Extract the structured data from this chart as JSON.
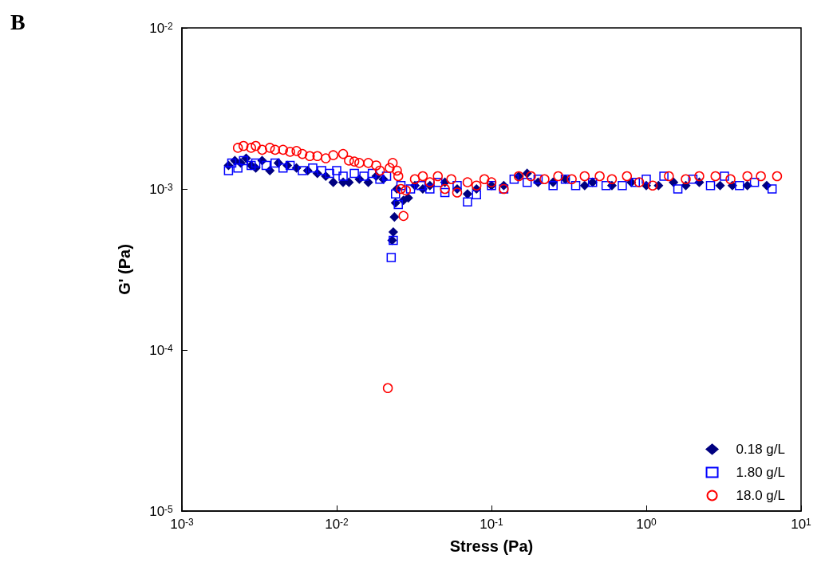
{
  "chart_data": {
    "type": "scatter",
    "title": "B",
    "xlabel": "Stress (Pa)",
    "ylabel": "G' (Pa)",
    "log": "xy",
    "grid": false,
    "legend": "bottom right",
    "xlim": [
      0.001,
      10
    ],
    "xticks": [
      {
        "value": 0.001,
        "label": "10$^{-3}$"
      },
      {
        "value": 0.01,
        "label": "10$^{-2}$"
      },
      {
        "value": 0.1,
        "label": "10$^{-1}$"
      },
      {
        "value": 1,
        "label": "10$^{0}$"
      },
      {
        "value": 10,
        "label": "10$^{1}$"
      }
    ],
    "ylim": [
      1e-05,
      0.01
    ],
    "yticks": [
      {
        "value": 1e-05,
        "label": "10$^{-5}$"
      },
      {
        "value": 0.0001,
        "label": "10$^{-4}$"
      },
      {
        "value": 0.001,
        "label": "10$^{-3}$"
      },
      {
        "value": 0.01,
        "label": "10$^{-2}$"
      }
    ],
    "series": [
      {
        "name": "0.18 g/L",
        "color": "#000080",
        "marker": "diamond",
        "x": [
          0.002,
          0.0022,
          0.0024,
          0.0026,
          0.0028,
          0.003,
          0.0033,
          0.0037,
          0.0042,
          0.0048,
          0.0055,
          0.0065,
          0.0075,
          0.0085,
          0.0095,
          0.011,
          0.012,
          0.014,
          0.016,
          0.018,
          0.02,
          0.0228,
          0.0232,
          0.0236,
          0.024,
          0.0245,
          0.027,
          0.029,
          0.032,
          0.036,
          0.04,
          0.05,
          0.06,
          0.07,
          0.08,
          0.1,
          0.12,
          0.15,
          0.17,
          0.2,
          0.25,
          0.3,
          0.4,
          0.45,
          0.6,
          0.8,
          1.0,
          1.2,
          1.5,
          1.8,
          2.2,
          3.0,
          3.6,
          4.5,
          6.0
        ],
        "values": [
          0.0014,
          0.0015,
          0.00145,
          0.00155,
          0.0014,
          0.00135,
          0.0015,
          0.0013,
          0.00145,
          0.0014,
          0.00135,
          0.0013,
          0.00125,
          0.0012,
          0.0011,
          0.0011,
          0.0011,
          0.00115,
          0.0011,
          0.0012,
          0.00115,
          0.00048,
          0.00054,
          0.00067,
          0.00082,
          0.001,
          0.00085,
          0.00088,
          0.00105,
          0.001,
          0.00105,
          0.0011,
          0.001,
          0.00093,
          0.001,
          0.00105,
          0.00105,
          0.0012,
          0.00125,
          0.0011,
          0.0011,
          0.00115,
          0.00105,
          0.0011,
          0.00105,
          0.0011,
          0.00105,
          0.00105,
          0.0011,
          0.00105,
          0.0011,
          0.00105,
          0.00105,
          0.00105,
          0.00105
        ]
      },
      {
        "name": "1.80 g/L",
        "color": "#0000ff",
        "marker": "square",
        "x": [
          0.002,
          0.0021,
          0.0023,
          0.0025,
          0.0028,
          0.003,
          0.0035,
          0.004,
          0.0045,
          0.005,
          0.006,
          0.007,
          0.008,
          0.009,
          0.01,
          0.011,
          0.013,
          0.015,
          0.017,
          0.019,
          0.021,
          0.0225,
          0.0232,
          0.024,
          0.025,
          0.026,
          0.03,
          0.035,
          0.04,
          0.045,
          0.05,
          0.06,
          0.07,
          0.08,
          0.1,
          0.12,
          0.14,
          0.17,
          0.2,
          0.25,
          0.3,
          0.35,
          0.45,
          0.55,
          0.7,
          0.85,
          1.0,
          1.3,
          1.6,
          2.0,
          2.6,
          3.2,
          4.0,
          5.0,
          6.5
        ],
        "values": [
          0.0013,
          0.00145,
          0.00135,
          0.0015,
          0.0014,
          0.00145,
          0.0014,
          0.00145,
          0.00135,
          0.0014,
          0.0013,
          0.00135,
          0.0013,
          0.00125,
          0.0013,
          0.0012,
          0.00125,
          0.0012,
          0.00125,
          0.00115,
          0.0012,
          0.000375,
          0.00048,
          0.00093,
          0.0008,
          0.00105,
          0.001,
          0.00105,
          0.001,
          0.0011,
          0.00095,
          0.00105,
          0.00083,
          0.00092,
          0.00105,
          0.001,
          0.00115,
          0.0011,
          0.00115,
          0.00105,
          0.00115,
          0.00105,
          0.0011,
          0.00105,
          0.00105,
          0.0011,
          0.00115,
          0.0012,
          0.001,
          0.00115,
          0.00105,
          0.0012,
          0.00105,
          0.0011,
          0.001
        ]
      },
      {
        "name": "18.0 g/L",
        "color": "#ff0000",
        "marker": "circle",
        "x": [
          0.0023,
          0.0025,
          0.0028,
          0.003,
          0.0033,
          0.0037,
          0.004,
          0.0045,
          0.005,
          0.0055,
          0.006,
          0.0067,
          0.0075,
          0.0085,
          0.0095,
          0.011,
          0.012,
          0.013,
          0.014,
          0.016,
          0.018,
          0.019,
          0.0214,
          0.022,
          0.023,
          0.0245,
          0.025,
          0.026,
          0.027,
          0.028,
          0.032,
          0.036,
          0.04,
          0.045,
          0.05,
          0.055,
          0.06,
          0.07,
          0.08,
          0.09,
          0.1,
          0.12,
          0.15,
          0.18,
          0.22,
          0.27,
          0.33,
          0.4,
          0.5,
          0.6,
          0.75,
          0.9,
          1.1,
          1.4,
          1.8,
          2.2,
          2.8,
          3.5,
          4.5,
          5.5,
          7
        ],
        "values": [
          0.0018,
          0.00185,
          0.0018,
          0.00185,
          0.00175,
          0.0018,
          0.00175,
          0.00175,
          0.0017,
          0.00172,
          0.00165,
          0.0016,
          0.0016,
          0.00155,
          0.00162,
          0.00165,
          0.0015,
          0.00148,
          0.00145,
          0.00145,
          0.0014,
          0.0013,
          5.8e-05,
          0.00135,
          0.00145,
          0.0013,
          0.0012,
          0.001,
          0.00068,
          0.00098,
          0.00115,
          0.0012,
          0.0011,
          0.0012,
          0.001,
          0.00115,
          0.00095,
          0.0011,
          0.00105,
          0.00115,
          0.0011,
          0.001,
          0.0012,
          0.0012,
          0.00115,
          0.0012,
          0.00115,
          0.0012,
          0.0012,
          0.00115,
          0.0012,
          0.0011,
          0.00105,
          0.0012,
          0.00115,
          0.0012,
          0.0012,
          0.00115,
          0.0012,
          0.0012,
          0.0012
        ]
      }
    ]
  }
}
